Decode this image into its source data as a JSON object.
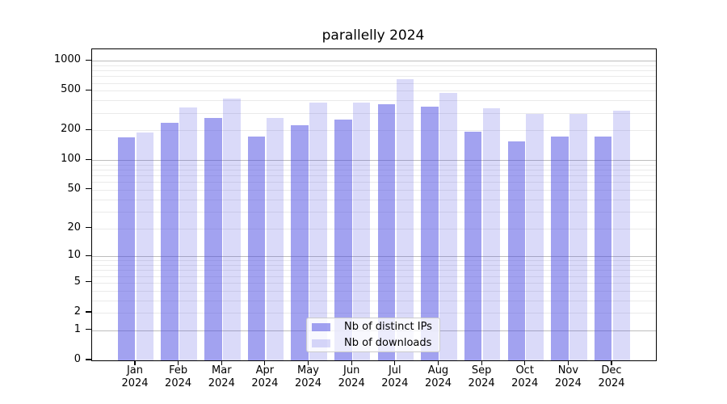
{
  "chart_data": {
    "type": "bar",
    "title": "parallelly 2024",
    "categories": [
      "Jan",
      "Feb",
      "Mar",
      "Apr",
      "May",
      "Jun",
      "Jul",
      "Aug",
      "Sep",
      "Oct",
      "Nov",
      "Dec"
    ],
    "category_year": "2024",
    "series": [
      {
        "name": "Nb of distinct IPs",
        "color": "rgba(70,70,225,0.5)",
        "values": [
          170,
          240,
          265,
          172,
          225,
          257,
          363,
          347,
          195,
          154,
          172,
          172
        ]
      },
      {
        "name": "Nb of downloads",
        "color": "rgba(70,70,225,0.2)",
        "values": [
          190,
          340,
          417,
          266,
          379,
          379,
          648,
          474,
          335,
          295,
          295,
          316
        ]
      }
    ],
    "yscale": "log1p",
    "ylim": [
      0,
      1300
    ],
    "yticks": [
      1000,
      500,
      200,
      100,
      50,
      20,
      10,
      5,
      2,
      1,
      0
    ],
    "grid": true,
    "legend_position": "lower center"
  },
  "colors": {
    "major_grid": "#bdbdbd",
    "minor_grid": "#eaeaea",
    "axis": "#000000"
  }
}
